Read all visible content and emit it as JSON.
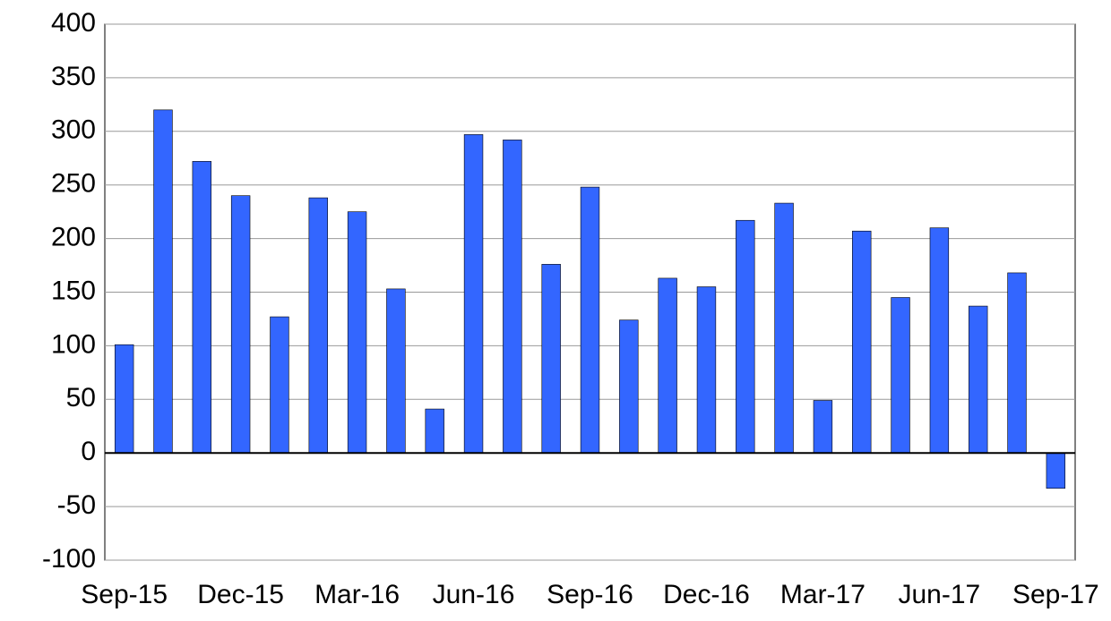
{
  "chart_data": {
    "type": "bar",
    "categories": [
      "Sep-15",
      null,
      null,
      "Dec-15",
      null,
      null,
      "Mar-16",
      null,
      null,
      "Jun-16",
      null,
      null,
      "Sep-16",
      null,
      null,
      "Dec-16",
      null,
      null,
      "Mar-17",
      null,
      null,
      "Jun-17",
      null,
      null,
      "Sep-17"
    ],
    "values": [
      101,
      320,
      272,
      240,
      127,
      238,
      225,
      153,
      41,
      297,
      292,
      176,
      248,
      124,
      163,
      155,
      217,
      233,
      49,
      207,
      145,
      210,
      137,
      168,
      -33
    ],
    "color": "#3366ff",
    "ylim": [
      -100,
      400
    ],
    "yticks": [
      -100,
      -50,
      0,
      50,
      100,
      150,
      200,
      250,
      300,
      350,
      400
    ],
    "grid": true
  }
}
